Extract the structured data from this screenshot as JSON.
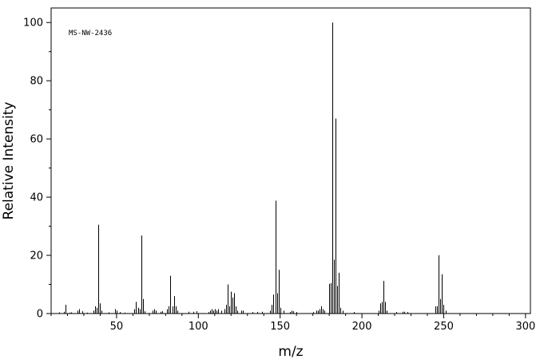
{
  "chart_data": {
    "type": "bar",
    "title": "",
    "annotation": "MS-NW-2436",
    "xlabel": "m/z",
    "ylabel": "Relative Intensity",
    "xlim": [
      10,
      303
    ],
    "ylim": [
      0,
      105
    ],
    "x_major_ticks": [
      50,
      100,
      150,
      200,
      250,
      300
    ],
    "x_major_labels": [
      "50",
      "100",
      "150",
      "200",
      "250",
      "300"
    ],
    "x_minor_step": 10,
    "y_major_ticks": [
      0,
      20,
      40,
      60,
      80,
      100
    ],
    "y_major_labels": [
      "0",
      "20",
      "40",
      "60",
      "80",
      "100"
    ],
    "y_minor_step": 10,
    "grid": false,
    "legend": "none",
    "series": [
      {
        "peaks": [
          [
            15,
            0.4
          ],
          [
            18,
            0.6
          ],
          [
            19,
            3.0
          ],
          [
            21,
            0.3
          ],
          [
            22,
            0.4
          ],
          [
            26,
            1.0
          ],
          [
            27,
            1.5
          ],
          [
            29,
            0.8
          ],
          [
            32,
            0.3
          ],
          [
            36,
            1.0
          ],
          [
            37,
            2.5
          ],
          [
            38,
            2.0
          ],
          [
            39,
            30.5
          ],
          [
            40,
            3.5
          ],
          [
            41,
            1.0
          ],
          [
            45,
            0.4
          ],
          [
            49,
            1.5
          ],
          [
            50,
            1.0
          ],
          [
            52,
            0.5
          ],
          [
            55,
            0.3
          ],
          [
            61,
            1.5
          ],
          [
            62,
            4.0
          ],
          [
            63,
            2.0
          ],
          [
            64,
            1.5
          ],
          [
            65,
            26.8
          ],
          [
            66,
            5.0
          ],
          [
            67,
            0.8
          ],
          [
            72,
            1.0
          ],
          [
            73,
            1.5
          ],
          [
            74,
            1.0
          ],
          [
            77,
            0.6
          ],
          [
            78,
            0.8
          ],
          [
            81,
            1.5
          ],
          [
            82,
            2.5
          ],
          [
            83,
            13.0
          ],
          [
            84,
            2.5
          ],
          [
            85,
            6.0
          ],
          [
            86,
            2.5
          ],
          [
            87,
            1.0
          ],
          [
            94,
            0.6
          ],
          [
            97,
            0.6
          ],
          [
            99,
            0.8
          ],
          [
            106,
            0.5
          ],
          [
            107,
            1.0
          ],
          [
            108,
            1.5
          ],
          [
            109,
            1.0
          ],
          [
            110,
            1.5
          ],
          [
            111,
            1.0
          ],
          [
            112,
            1.5
          ],
          [
            114,
            1.0
          ],
          [
            116,
            1.5
          ],
          [
            117,
            3.0
          ],
          [
            118,
            10.0
          ],
          [
            119,
            2.5
          ],
          [
            120,
            7.5
          ],
          [
            121,
            5.5
          ],
          [
            122,
            7.0
          ],
          [
            123,
            2.5
          ],
          [
            124,
            1.0
          ],
          [
            126,
            1.0
          ],
          [
            127,
            1.0
          ],
          [
            133,
            0.5
          ],
          [
            136,
            0.5
          ],
          [
            139,
            0.6
          ],
          [
            144,
            1.0
          ],
          [
            145,
            3.0
          ],
          [
            146,
            6.5
          ],
          [
            147,
            38.8
          ],
          [
            148,
            7.0
          ],
          [
            149,
            15.0
          ],
          [
            150,
            2.0
          ],
          [
            152,
            1.0
          ],
          [
            156,
            0.5
          ],
          [
            157,
            1.0
          ],
          [
            158,
            0.8
          ],
          [
            160,
            0.5
          ],
          [
            170,
            0.5
          ],
          [
            172,
            1.0
          ],
          [
            173,
            1.0
          ],
          [
            174,
            1.5
          ],
          [
            175,
            2.5
          ],
          [
            176,
            1.5
          ],
          [
            177,
            1.0
          ],
          [
            180,
            10.2
          ],
          [
            181,
            10.5
          ],
          [
            182,
            100.0
          ],
          [
            183,
            18.5
          ],
          [
            184,
            67.0
          ],
          [
            185,
            9.5
          ],
          [
            186,
            14.0
          ],
          [
            187,
            2.0
          ],
          [
            188,
            1.0
          ],
          [
            195,
            0.5
          ],
          [
            210,
            1.0
          ],
          [
            211,
            3.5
          ],
          [
            212,
            4.0
          ],
          [
            213,
            11.2
          ],
          [
            214,
            4.0
          ],
          [
            215,
            1.0
          ],
          [
            221,
            0.5
          ],
          [
            225,
            0.6
          ],
          [
            226,
            0.6
          ],
          [
            228,
            0.5
          ],
          [
            245,
            2.5
          ],
          [
            246,
            2.5
          ],
          [
            247,
            20.0
          ],
          [
            248,
            5.0
          ],
          [
            249,
            13.5
          ],
          [
            250,
            3.0
          ],
          [
            251,
            1.0
          ]
        ]
      }
    ],
    "colors": {
      "bars": "#000000",
      "axes": "#000000",
      "background": "#ffffff"
    }
  }
}
